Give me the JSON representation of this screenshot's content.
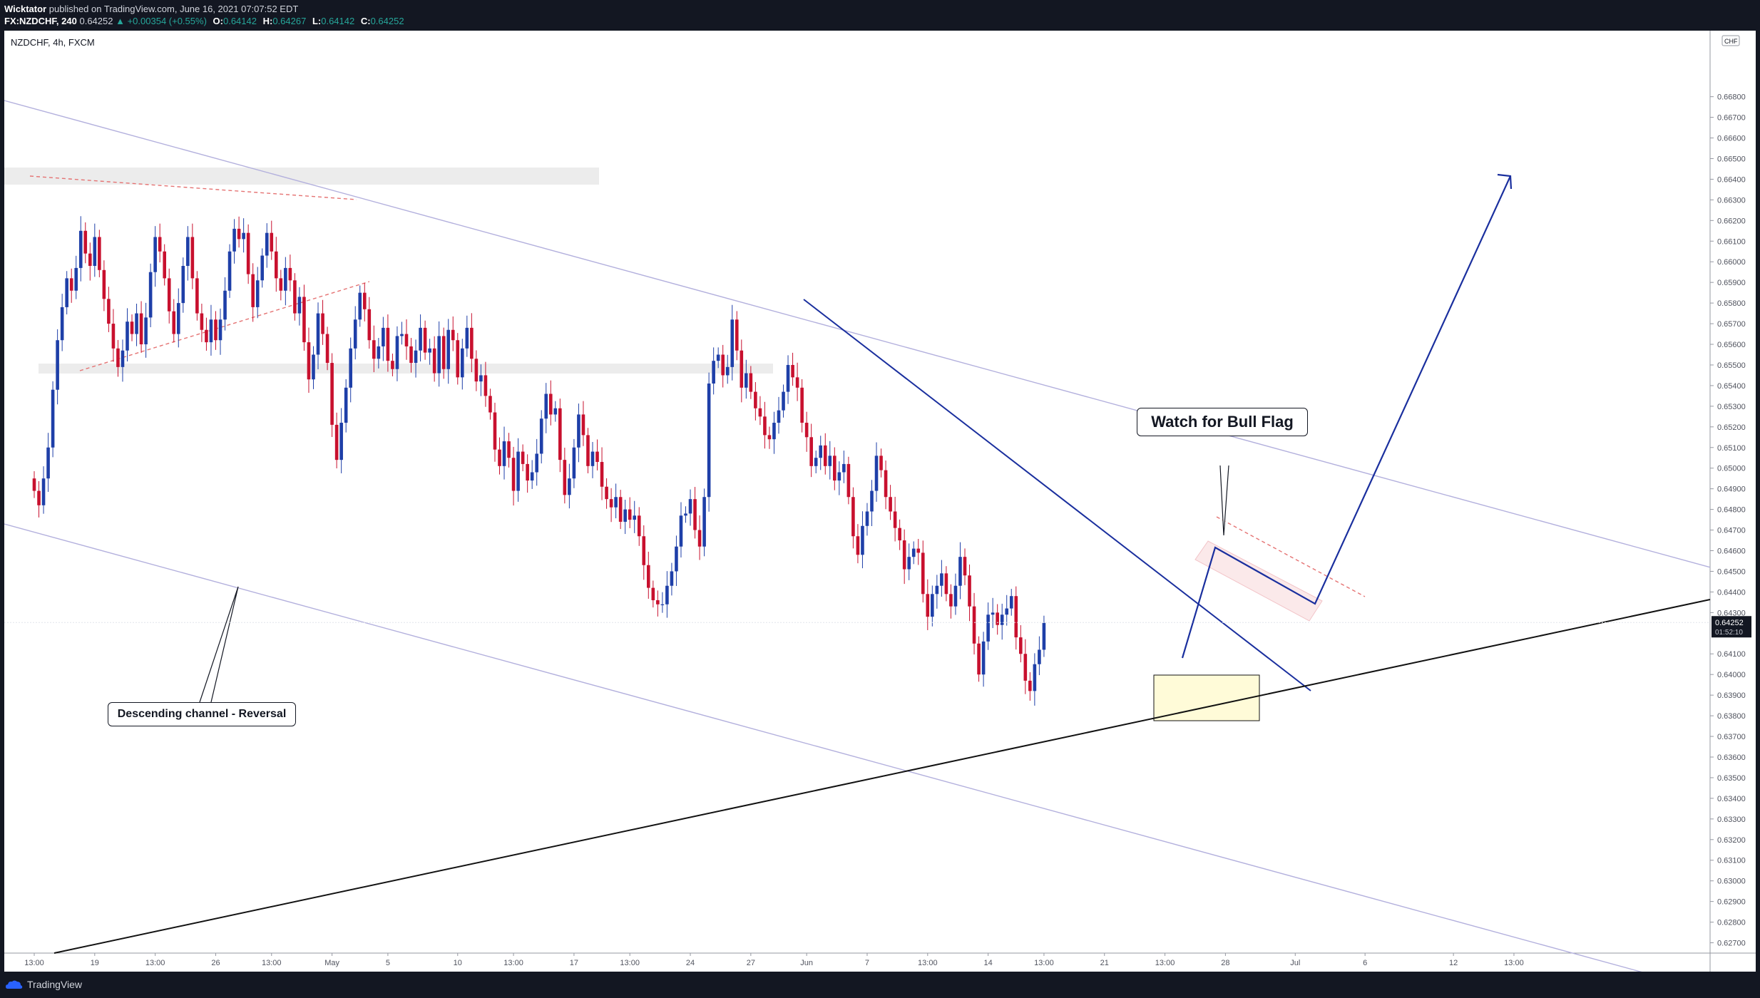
{
  "header": {
    "author": "Wicktator",
    "published_text": "published on TradingView.com, June 16, 2021 07:07:52 EDT",
    "symbol": "FX:NZDCHF, 240",
    "last": "0.64252",
    "change": "▲ +0.00354 (+0.55%)",
    "open_label": "O:",
    "open": "0.64142",
    "high_label": "H:",
    "high": "0.64267",
    "low_label": "L:",
    "low": "0.64142",
    "close_label": "C:",
    "close": "0.64252"
  },
  "chart_legend": "NZDCHF, 4h, FXCM",
  "footer": {
    "brand": "TradingView"
  },
  "colors": {
    "bull": "#1e3fa8",
    "bear": "#c8102e",
    "channel": "#b3b0dd",
    "trend": "#1a2f9e",
    "support": "#111111",
    "dashed": "#e57373",
    "zone": "#ececec",
    "flag_fill": "#fbe9ea",
    "target_fill": "#fffbd8"
  },
  "chart_data": {
    "type": "candlestick",
    "symbol": "NZDCHF",
    "interval": "4h",
    "source": "FXCM",
    "currency_label": "CHF",
    "last_price": "0.64252",
    "countdown": "01:52:10",
    "ylim": [
      0.6265,
      0.6712
    ],
    "y_ticks": [
      "0.62700",
      "0.62800",
      "0.62900",
      "0.63000",
      "0.63100",
      "0.63200",
      "0.63300",
      "0.63400",
      "0.63500",
      "0.63600",
      "0.63700",
      "0.63800",
      "0.63900",
      "0.64000",
      "0.64100",
      "0.64300",
      "0.64400",
      "0.64500",
      "0.64600",
      "0.64700",
      "0.64800",
      "0.64900",
      "0.65000",
      "0.65100",
      "0.65200",
      "0.65300",
      "0.65400",
      "0.65500",
      "0.65600",
      "0.65700",
      "0.65800",
      "0.65900",
      "0.66000",
      "0.66100",
      "0.66200",
      "0.66300",
      "0.66400",
      "0.66500",
      "0.66600",
      "0.66700",
      "0.66800"
    ],
    "x_ticks": [
      "13:00",
      "19",
      "13:00",
      "26",
      "13:00",
      "May",
      "5",
      "10",
      "13:00",
      "17",
      "13:00",
      "24",
      "27",
      "Jun",
      "7",
      "13:00",
      "14",
      "13:00",
      "21",
      "13:00",
      "28",
      "Jul",
      "6",
      "12",
      "13:00"
    ],
    "x_tick_bars": [
      0,
      13,
      26,
      39,
      51,
      64,
      76,
      91,
      103,
      116,
      128,
      141,
      154,
      166,
      179,
      192,
      205,
      217,
      230,
      243,
      256,
      271,
      286,
      305,
      318
    ],
    "closes": [
      0.6489,
      0.6482,
      0.6495,
      0.651,
      0.6538,
      0.6562,
      0.6578,
      0.6592,
      0.6586,
      0.6597,
      0.6615,
      0.6604,
      0.6598,
      0.6612,
      0.6596,
      0.6582,
      0.657,
      0.6558,
      0.6549,
      0.6557,
      0.6571,
      0.6565,
      0.6575,
      0.656,
      0.6573,
      0.6595,
      0.6612,
      0.6605,
      0.6592,
      0.6576,
      0.6565,
      0.658,
      0.6598,
      0.6612,
      0.6592,
      0.6575,
      0.6567,
      0.6561,
      0.6572,
      0.6562,
      0.6572,
      0.6586,
      0.6605,
      0.6616,
      0.6611,
      0.6614,
      0.6594,
      0.6578,
      0.6591,
      0.6603,
      0.6614,
      0.6605,
      0.6592,
      0.6586,
      0.6597,
      0.6591,
      0.6575,
      0.6583,
      0.6561,
      0.6543,
      0.6555,
      0.6575,
      0.6565,
      0.6551,
      0.6521,
      0.6504,
      0.6522,
      0.6539,
      0.6558,
      0.6572,
      0.6585,
      0.6577,
      0.6562,
      0.6553,
      0.6559,
      0.6568,
      0.6552,
      0.6548,
      0.6564,
      0.6565,
      0.6559,
      0.6551,
      0.6557,
      0.6568,
      0.6556,
      0.6558,
      0.6546,
      0.6564,
      0.6548,
      0.6567,
      0.6562,
      0.6544,
      0.6558,
      0.6568,
      0.6553,
      0.6542,
      0.6545,
      0.6535,
      0.6527,
      0.6509,
      0.6501,
      0.6513,
      0.6505,
      0.6489,
      0.6508,
      0.6502,
      0.6494,
      0.6498,
      0.6507,
      0.6524,
      0.6536,
      0.6526,
      0.6529,
      0.6504,
      0.6487,
      0.6495,
      0.651,
      0.6526,
      0.6516,
      0.6501,
      0.6508,
      0.6503,
      0.6491,
      0.6485,
      0.6481,
      0.6486,
      0.6474,
      0.648,
      0.6475,
      0.6477,
      0.6467,
      0.6453,
      0.6442,
      0.6436,
      0.6434,
      0.6434,
      0.6443,
      0.645,
      0.6462,
      0.6477,
      0.6478,
      0.6485,
      0.647,
      0.6462,
      0.6486,
      0.6541,
      0.6552,
      0.6555,
      0.6545,
      0.6549,
      0.6572,
      0.6557,
      0.6539,
      0.6546,
      0.6537,
      0.6529,
      0.6525,
      0.6516,
      0.6514,
      0.6522,
      0.6528,
      0.6537,
      0.655,
      0.6544,
      0.6539,
      0.6522,
      0.6515,
      0.6501,
      0.6505,
      0.6511,
      0.6501,
      0.6506,
      0.6494,
      0.6498,
      0.6502,
      0.6486,
      0.6467,
      0.6458,
      0.6472,
      0.6479,
      0.6489,
      0.6506,
      0.6499,
      0.6486,
      0.6479,
      0.6471,
      0.6465,
      0.6451,
      0.6457,
      0.6461,
      0.6459,
      0.6439,
      0.6428,
      0.6439,
      0.6443,
      0.6449,
      0.6439,
      0.6433,
      0.6443,
      0.6457,
      0.6448,
      0.6433,
      0.6415,
      0.64,
      0.6416,
      0.6429,
      0.643,
      0.6424,
      0.6429,
      0.6432,
      0.6438,
      0.6418,
      0.641,
      0.6397,
      0.6392,
      0.6405,
      0.6412,
      0.6425
    ]
  }
}
